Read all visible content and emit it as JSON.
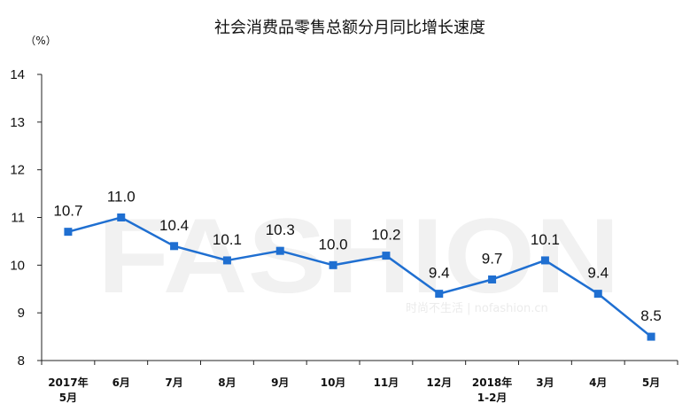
{
  "chart_data": {
    "type": "line",
    "title": "社会消费品零售总额分月同比增长速度",
    "ylabel": "（%）",
    "ylim": [
      8,
      14
    ],
    "yticks": [
      8,
      9,
      10,
      11,
      12,
      13,
      14
    ],
    "grid": false,
    "categories": [
      [
        "2017年",
        "5月"
      ],
      [
        "6月"
      ],
      [
        "7月"
      ],
      [
        "8月"
      ],
      [
        "9月"
      ],
      [
        "10月"
      ],
      [
        "11月"
      ],
      [
        "12月"
      ],
      [
        "2018年",
        "1-2月"
      ],
      [
        "3月"
      ],
      [
        "4月"
      ],
      [
        "5月"
      ]
    ],
    "series": [
      {
        "values": [
          10.7,
          11.0,
          10.4,
          10.1,
          10.3,
          10.0,
          10.2,
          9.4,
          9.7,
          10.1,
          9.4,
          8.5
        ]
      }
    ],
    "data_labels": [
      "10.7",
      "11.0",
      "10.4",
      "10.1",
      "10.3",
      "10.0",
      "10.2",
      "9.4",
      "9.7",
      "10.1",
      "9.4",
      "8.5"
    ],
    "colors": {
      "line": "#1f6fd1",
      "axis": "#222222"
    }
  },
  "watermark": {
    "brand": "FASHION",
    "caption": "时尚不生活 | nofashion.cn"
  }
}
